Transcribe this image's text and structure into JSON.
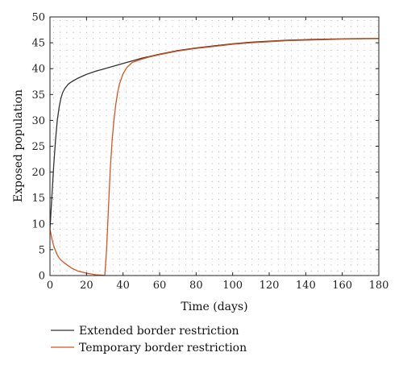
{
  "chart_data": {
    "type": "line",
    "title": "",
    "xlabel": "Time (days)",
    "ylabel": "Exposed population",
    "xlim": [
      0,
      180
    ],
    "ylim": [
      0,
      50
    ],
    "xticks": [
      0,
      20,
      40,
      60,
      80,
      100,
      120,
      140,
      160,
      180
    ],
    "yticks": [
      0,
      5,
      10,
      15,
      20,
      25,
      30,
      35,
      40,
      45,
      50
    ],
    "grid": "dotted",
    "legend_position": "bottom",
    "series": [
      {
        "name": "Extended border restriction",
        "color": "#333333",
        "x": [
          0,
          1,
          2,
          3,
          4,
          5,
          6,
          7,
          8,
          10,
          12,
          15,
          20,
          25,
          30,
          35,
          40,
          45,
          50,
          60,
          70,
          80,
          90,
          100,
          110,
          120,
          130,
          140,
          150,
          160,
          170,
          180
        ],
        "y": [
          9,
          15,
          21,
          26,
          30,
          32.5,
          34.3,
          35.4,
          36.1,
          37,
          37.5,
          38.1,
          38.9,
          39.5,
          40.0,
          40.5,
          41.0,
          41.5,
          42.0,
          42.8,
          43.5,
          44.0,
          44.4,
          44.8,
          45.1,
          45.3,
          45.5,
          45.6,
          45.7,
          45.75,
          45.8,
          45.85
        ]
      },
      {
        "name": "Temporary border restriction",
        "color": "#d9541e",
        "x": [
          0,
          1,
          2,
          3,
          4,
          5,
          6,
          8,
          10,
          12,
          15,
          20,
          25,
          29,
          30,
          31,
          32,
          33,
          34,
          35,
          36,
          37,
          38,
          40,
          42,
          45,
          50,
          55,
          60,
          70,
          80,
          90,
          100,
          110,
          120,
          130,
          140,
          150,
          160,
          170,
          180
        ],
        "y": [
          9,
          7.2,
          5.8,
          4.8,
          4.0,
          3.4,
          3.0,
          2.4,
          1.9,
          1.4,
          0.9,
          0.45,
          0.15,
          0.05,
          0,
          5,
          13,
          20.5,
          26,
          30,
          33,
          35.3,
          37,
          39,
          40.2,
          41.2,
          41.8,
          42.3,
          42.7,
          43.4,
          43.9,
          44.3,
          44.7,
          45.0,
          45.2,
          45.4,
          45.5,
          45.6,
          45.7,
          45.75,
          45.8
        ]
      }
    ]
  }
}
